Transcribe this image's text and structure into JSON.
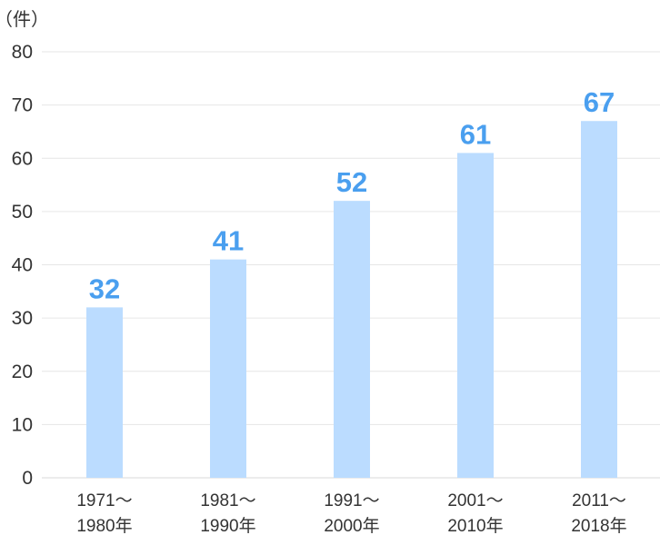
{
  "chart_data": {
    "type": "bar",
    "unit_label": "（件）",
    "categories": [
      [
        "1971～",
        "1980年"
      ],
      [
        "1981～",
        "1990年"
      ],
      [
        "1991～",
        "2000年"
      ],
      [
        "2001～",
        "2010年"
      ],
      [
        "2011～",
        "2018年"
      ]
    ],
    "values": [
      32,
      41,
      52,
      61,
      67
    ],
    "ylim": [
      0,
      80
    ],
    "yticks": [
      0,
      10,
      20,
      30,
      40,
      50,
      60,
      70,
      80
    ],
    "grid": true,
    "colors": {
      "bar": "#bbdcff",
      "label": "#4a9fef",
      "grid": "#e6e6e6"
    }
  }
}
